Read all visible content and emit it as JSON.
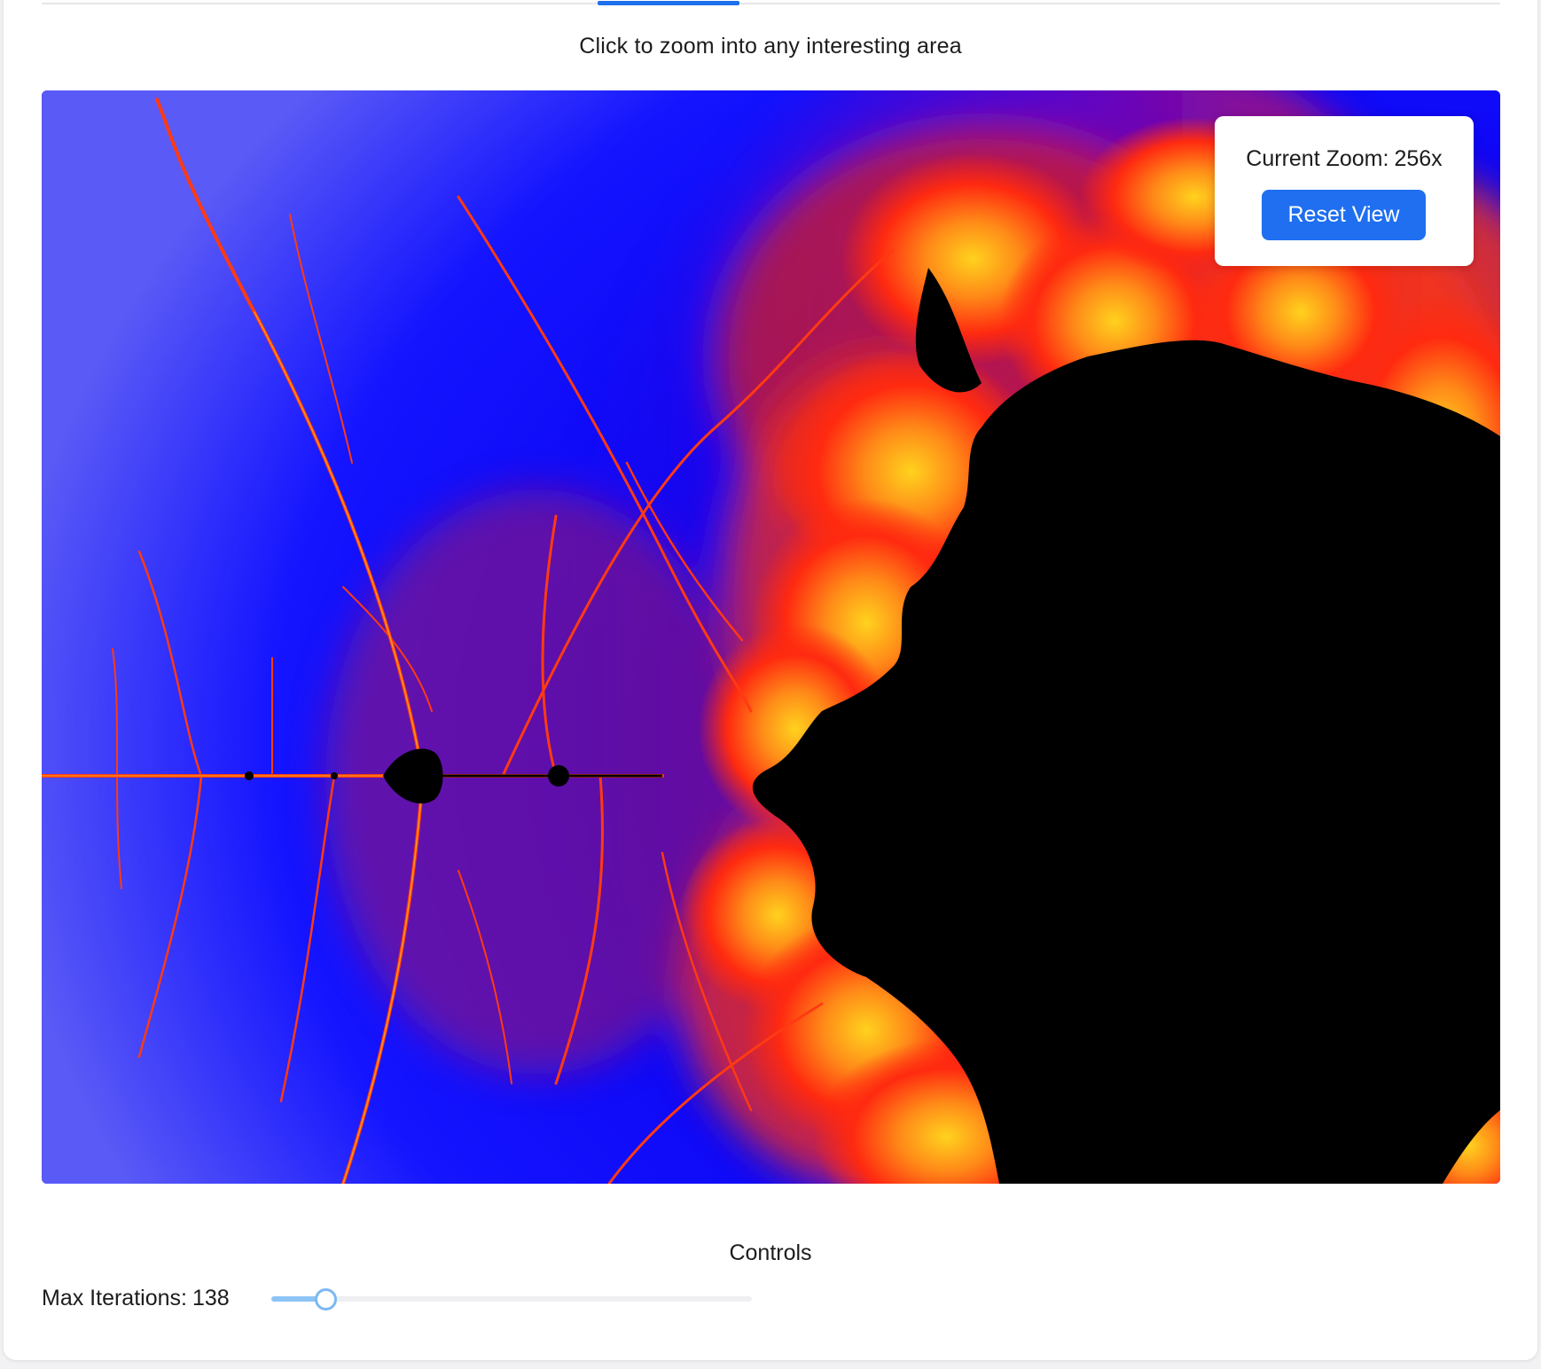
{
  "hint": "Click to zoom into any interesting area",
  "zoom": {
    "label": "Current Zoom:",
    "value": "256x",
    "reset_label": "Reset View"
  },
  "controls": {
    "title": "Controls",
    "iterations": {
      "label": "Max Iterations:",
      "value": "138",
      "fraction": 0.09
    }
  },
  "colors": {
    "accent": "#1f6ff0",
    "fractal_outer": "#0000ff",
    "fractal_mid": "#ff2a10",
    "fractal_edge": "#ffd21e",
    "fractal_set": "#000000"
  },
  "icons": {
    "slider_thumb": "circle-knob"
  }
}
